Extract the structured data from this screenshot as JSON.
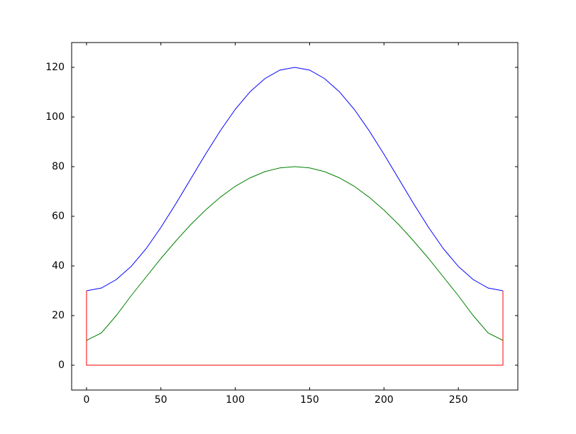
{
  "chart_data": {
    "type": "line",
    "x": [
      0,
      10,
      20,
      30,
      40,
      50,
      60,
      70,
      80,
      90,
      100,
      110,
      120,
      130,
      140,
      150,
      160,
      170,
      180,
      190,
      200,
      210,
      220,
      230,
      240,
      250,
      260,
      270,
      280
    ],
    "series": [
      {
        "color": "#0000ff",
        "values": [
          30,
          31.1,
          34.5,
          39.8,
          46.9,
          55.5,
          65,
          75,
          85,
          94.5,
          103.1,
          110.2,
          115.5,
          118.9,
          120,
          118.9,
          115.5,
          110.2,
          103.1,
          94.5,
          85,
          75,
          65,
          55.5,
          46.9,
          39.8,
          34.5,
          31.1,
          30
        ]
      },
      {
        "color": "#008000",
        "values": [
          10,
          13,
          20,
          28,
          35.5,
          43,
          50,
          56.6,
          62.5,
          67.7,
          72.1,
          75.5,
          78,
          79.5,
          80,
          79.5,
          78,
          75.5,
          72.1,
          67.7,
          62.5,
          56.6,
          50,
          43,
          35.5,
          28,
          20,
          13,
          10
        ]
      },
      {
        "color": "#ff0000",
        "x": [
          0,
          0,
          280,
          280
        ],
        "values": [
          30,
          0,
          0,
          30
        ]
      }
    ],
    "xlim": [
      -10,
      290
    ],
    "xticks": [
      0,
      50,
      100,
      150,
      200,
      250
    ],
    "ylim": [
      -10,
      130
    ],
    "yticks": [
      0,
      20,
      40,
      60,
      80,
      100,
      120
    ],
    "grid": false
  }
}
